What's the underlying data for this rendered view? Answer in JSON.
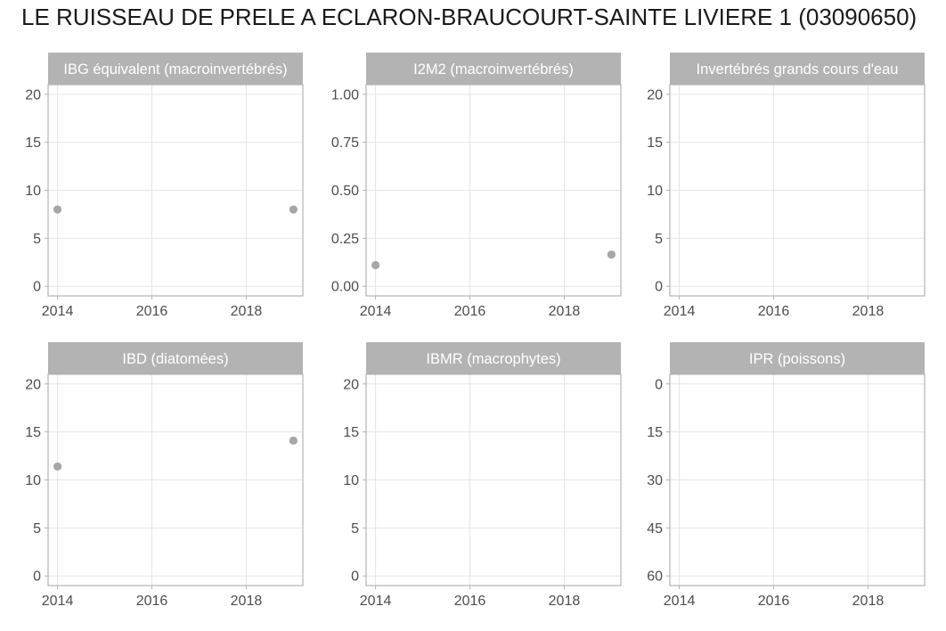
{
  "title": "LE RUISSEAU DE PRELE A ECLARON-BRAUCOURT-SAINTE LIVIERE 1 (03090650)",
  "colors": {
    "strip_fill": "#b3b3b3",
    "panel_border": "#b3b3b3",
    "grid": "#e5e5e5",
    "point": "#a6a6a6",
    "tick_text": "#4d4d4d"
  },
  "chart_data": [
    {
      "type": "scatter",
      "title": "IBG équivalent (macroinvertébrés)",
      "xlim": [
        2013.8,
        2019.2
      ],
      "ylim": [
        -1,
        21
      ],
      "x_ticks": [
        2014,
        2016,
        2018
      ],
      "y_ticks": [
        0,
        5,
        10,
        15,
        20
      ],
      "y_reversed": false,
      "grid": true,
      "points": [
        {
          "x": 2014,
          "y": 8
        },
        {
          "x": 2019,
          "y": 8
        }
      ]
    },
    {
      "type": "scatter",
      "title": "I2M2 (macroinvertébrés)",
      "xlim": [
        2013.8,
        2019.2
      ],
      "ylim": [
        -0.05,
        1.05
      ],
      "x_ticks": [
        2014,
        2016,
        2018
      ],
      "y_ticks": [
        0,
        0.25,
        0.5,
        0.75,
        1
      ],
      "y_tick_labels": [
        "0.00",
        "0.25",
        "0.50",
        "0.75",
        "1.00"
      ],
      "y_reversed": false,
      "grid": true,
      "points": [
        {
          "x": 2014,
          "y": 0.11
        },
        {
          "x": 2019,
          "y": 0.165
        }
      ]
    },
    {
      "type": "scatter",
      "title": "Invertébrés grands cours d'eau",
      "xlim": [
        2013.8,
        2019.2
      ],
      "ylim": [
        -1,
        21
      ],
      "x_ticks": [
        2014,
        2016,
        2018
      ],
      "y_ticks": [
        0,
        5,
        10,
        15,
        20
      ],
      "y_reversed": false,
      "grid": true,
      "points": []
    },
    {
      "type": "scatter",
      "title": "IBD (diatomées)",
      "xlim": [
        2013.8,
        2019.2
      ],
      "ylim": [
        -1,
        21
      ],
      "x_ticks": [
        2014,
        2016,
        2018
      ],
      "y_ticks": [
        0,
        5,
        10,
        15,
        20
      ],
      "y_reversed": false,
      "grid": true,
      "points": [
        {
          "x": 2014,
          "y": 11.4
        },
        {
          "x": 2019,
          "y": 14.1
        }
      ]
    },
    {
      "type": "scatter",
      "title": "IBMR (macrophytes)",
      "xlim": [
        2013.8,
        2019.2
      ],
      "ylim": [
        -1,
        21
      ],
      "x_ticks": [
        2014,
        2016,
        2018
      ],
      "y_ticks": [
        0,
        5,
        10,
        15,
        20
      ],
      "y_reversed": false,
      "grid": true,
      "points": []
    },
    {
      "type": "scatter",
      "title": "IPR (poissons)",
      "xlim": [
        2013.8,
        2019.2
      ],
      "ylim": [
        -3,
        63
      ],
      "x_ticks": [
        2014,
        2016,
        2018
      ],
      "y_ticks": [
        0,
        15,
        30,
        45,
        60
      ],
      "y_reversed": true,
      "grid": true,
      "points": []
    }
  ]
}
